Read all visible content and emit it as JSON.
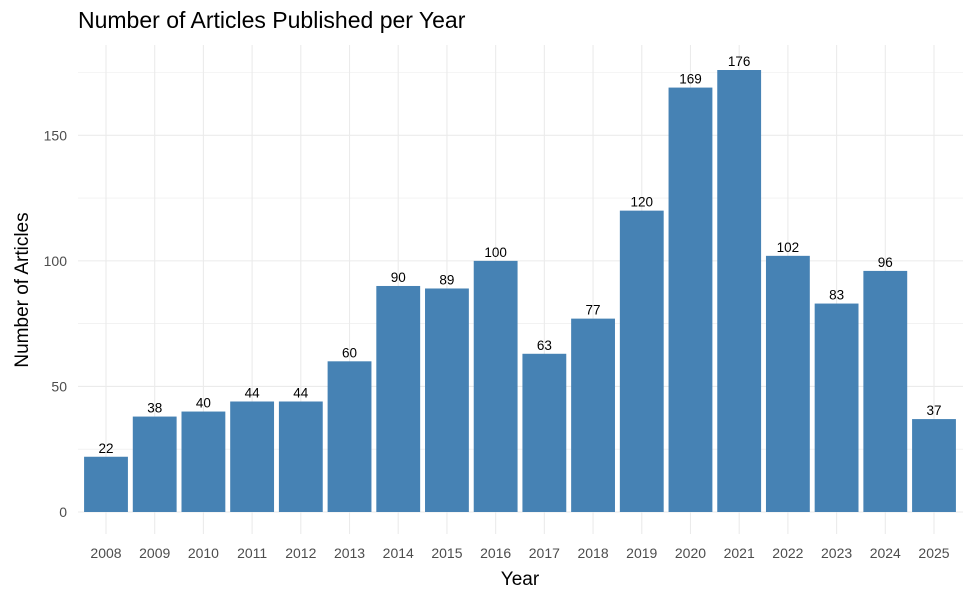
{
  "chart_data": {
    "type": "bar",
    "title": "Number of Articles Published per Year",
    "xlabel": "Year",
    "ylabel": "Number of Articles",
    "categories": [
      "2008",
      "2009",
      "2010",
      "2011",
      "2012",
      "2013",
      "2014",
      "2015",
      "2016",
      "2017",
      "2018",
      "2019",
      "2020",
      "2021",
      "2022",
      "2023",
      "2024",
      "2025"
    ],
    "values": [
      22,
      38,
      40,
      44,
      44,
      60,
      90,
      89,
      100,
      63,
      77,
      120,
      169,
      176,
      102,
      83,
      96,
      37
    ],
    "ylim": [
      0,
      185
    ],
    "yticks": [
      0,
      50,
      100,
      150
    ],
    "grid": true,
    "legend": "none",
    "bar_color": "#4682B4",
    "grid_color": "#ebebeb"
  }
}
